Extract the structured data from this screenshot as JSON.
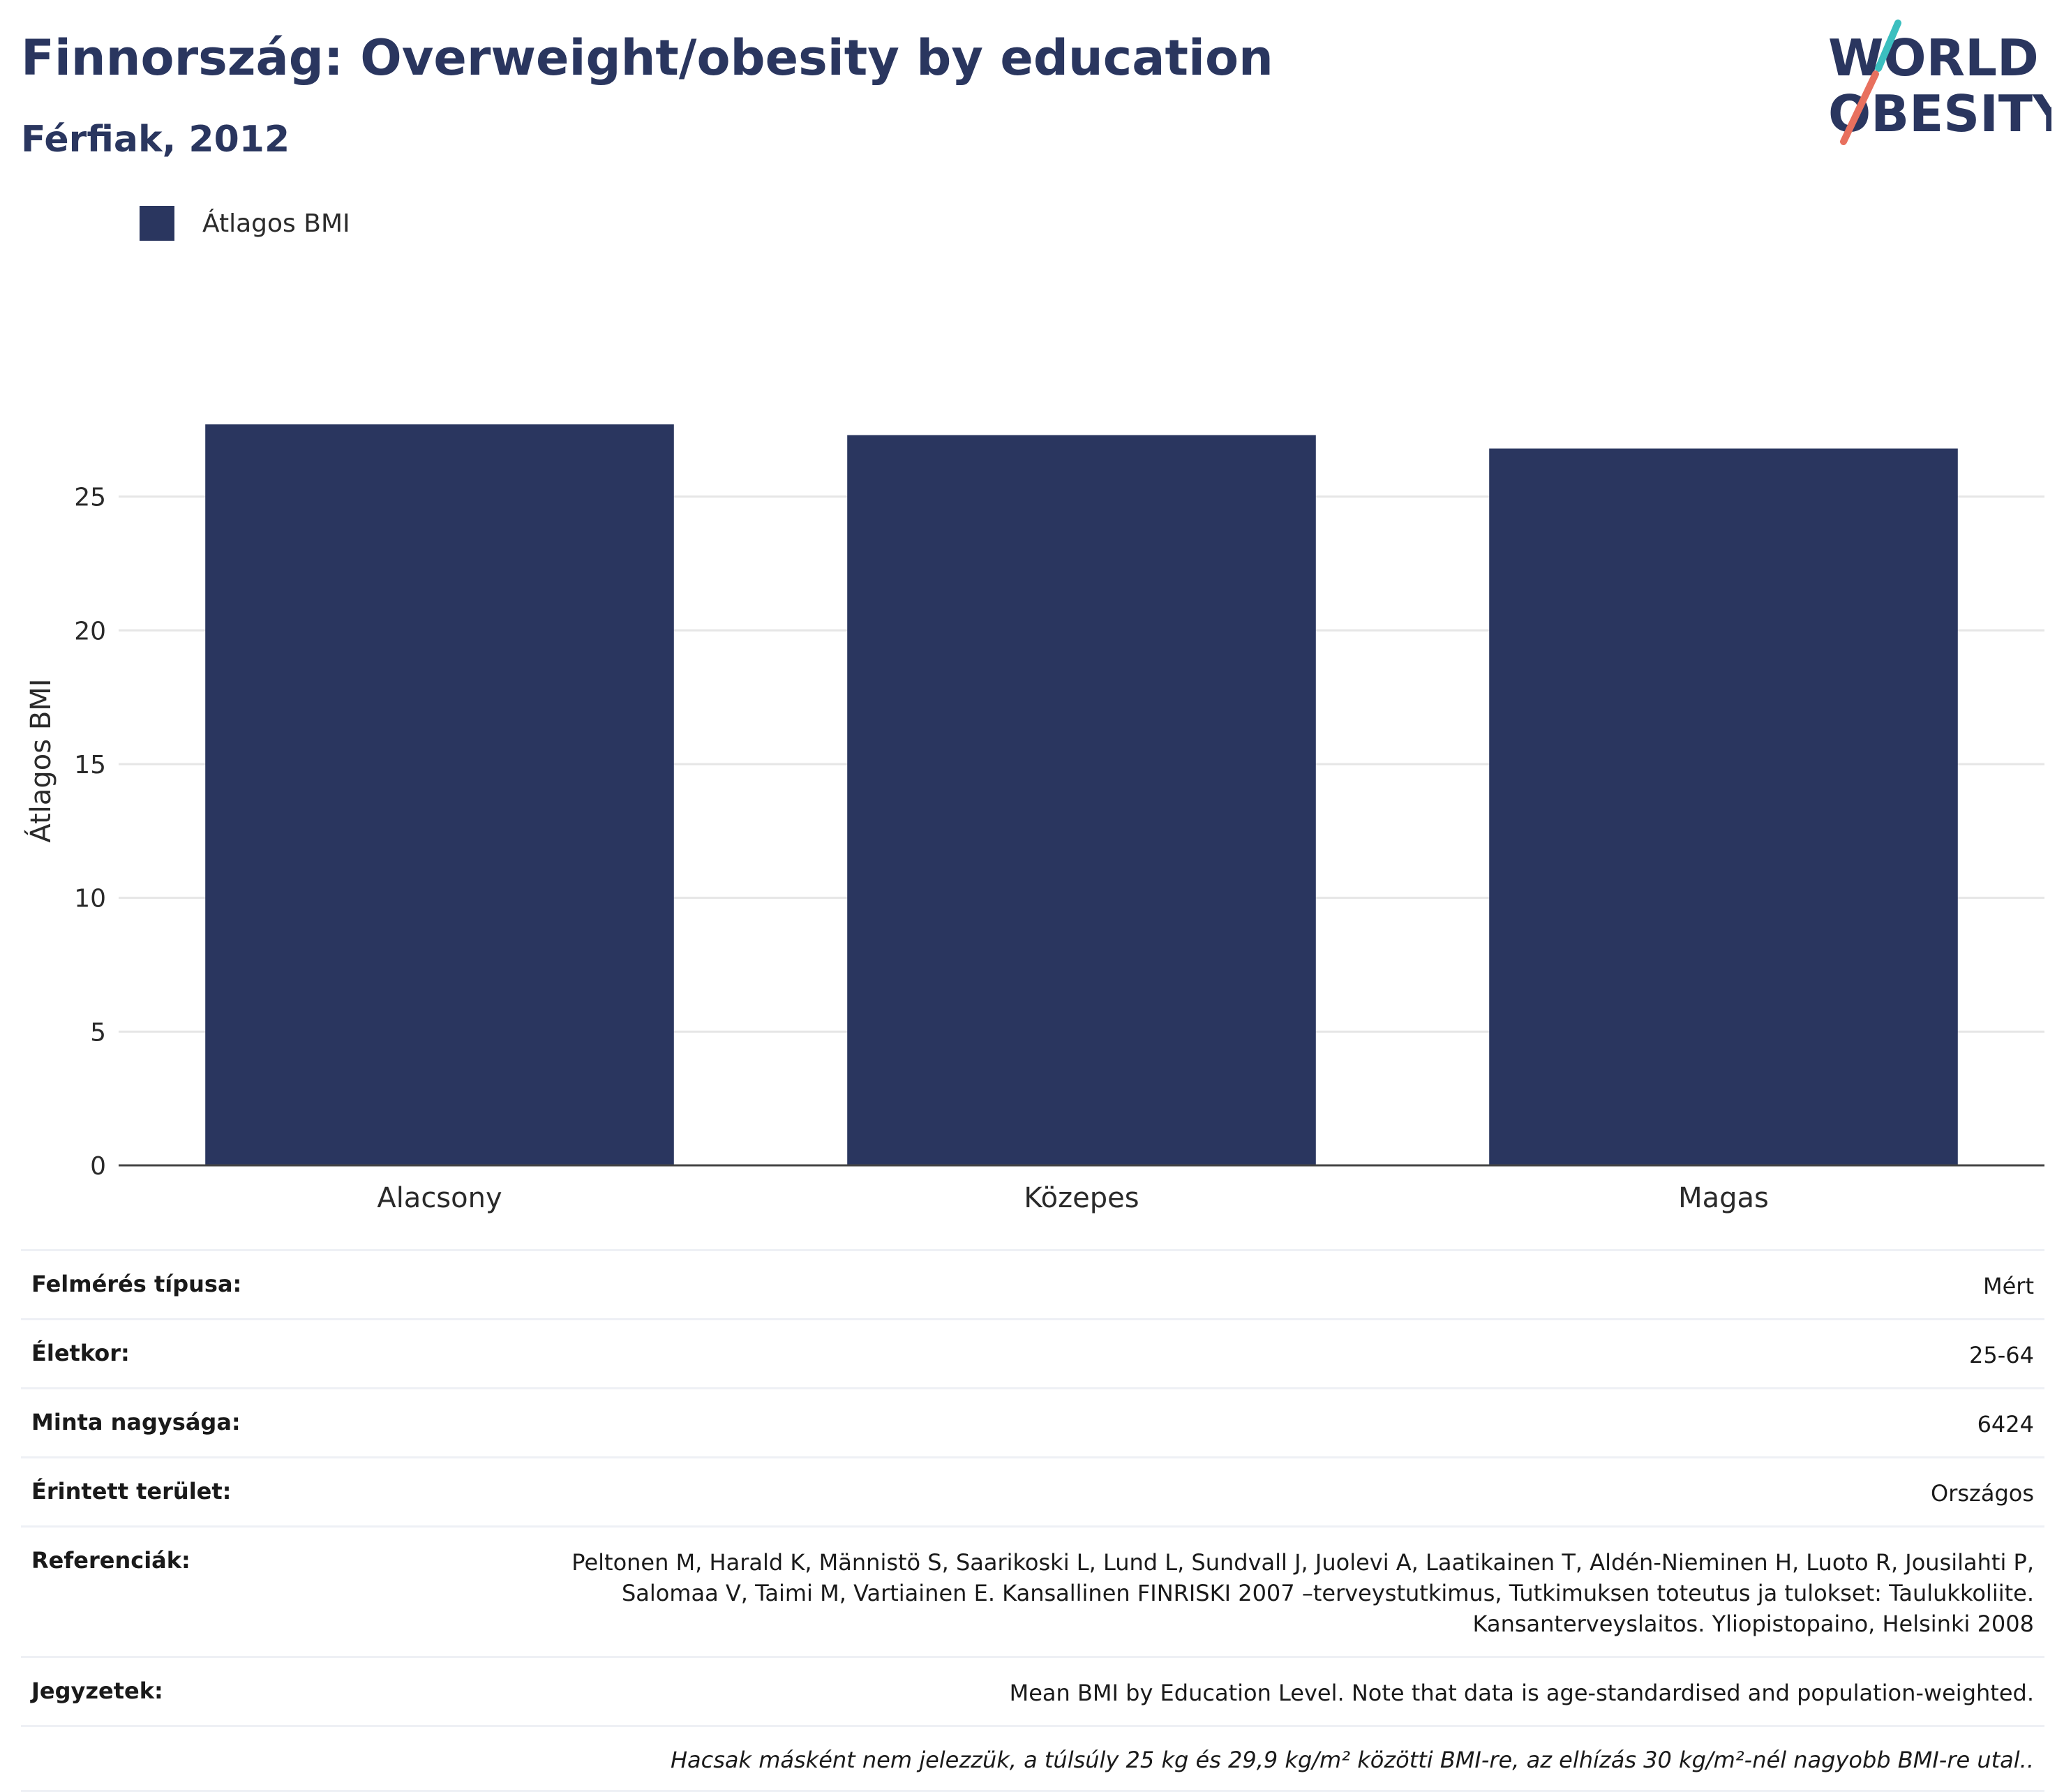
{
  "header": {
    "title": "Finnország: Overweight/obesity by education",
    "subtitle": "Férfiak, 2012",
    "logo_text_line1": "WORLD",
    "logo_text_line2": "OBESITY"
  },
  "legend": {
    "label": "Átlagos BMI"
  },
  "colors": {
    "bar": "#2a365f",
    "grid": "#e6e6e6",
    "axis": "#444444",
    "logo_teal": "#3bbfbf",
    "logo_coral": "#e8705e"
  },
  "chart_data": {
    "type": "bar",
    "categories": [
      "Alacsony",
      "Közepes",
      "Magas"
    ],
    "series": [
      {
        "name": "Átlagos BMI",
        "values": [
          27.7,
          27.3,
          26.8
        ]
      }
    ],
    "ylabel": "Átlagos BMI",
    "xlabel": "",
    "ylim": [
      0,
      30
    ],
    "yticks": [
      0,
      5,
      10,
      15,
      20,
      25
    ],
    "grid": true,
    "legend_position": "top-left"
  },
  "info": {
    "rows": [
      {
        "key": "Felmérés típusa:",
        "value": "Mért"
      },
      {
        "key": "Életkor:",
        "value": "25-64"
      },
      {
        "key": "Minta nagysága:",
        "value": "6424"
      },
      {
        "key": "Érintett terület:",
        "value": "Országos"
      },
      {
        "key": "Referenciák:",
        "value_lines": [
          "Peltonen M, Harald K, Männistö S, Saarikoski L, Lund L, Sundvall J, Juolevi A, Laatikainen T, Aldén-Nieminen H, Luoto R, Jousilahti P,",
          "Salomaa V, Taimi M, Vartiainen E. Kansallinen FINRISKI 2007 –terveystutkimus, Tutkimuksen toteutus ja tulokset: Taulukkoliite.",
          "Kansanterveyslaitos. Yliopistopaino, Helsinki 2008"
        ]
      },
      {
        "key": "Jegyzetek:",
        "value": "Mean BMI by Education Level. Note that data is age-standardised and population-weighted."
      }
    ],
    "footnote": "Hacsak másként nem jelezzük, a túlsúly 25 kg és 29,9 kg/m² közötti BMI-re, az elhízás 30 kg/m²-nél nagyobb BMI-re utal.."
  }
}
